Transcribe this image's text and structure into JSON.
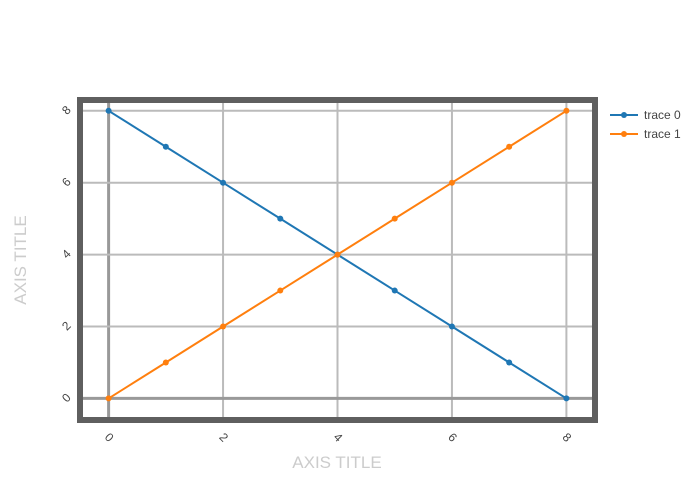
{
  "chart_data": {
    "type": "line",
    "xlabel": "AXIS TITLE",
    "ylabel": "AXIS TITLE",
    "xlim": [
      -0.5,
      8.5
    ],
    "ylim": [
      -0.6,
      8.3
    ],
    "xticks": [
      0,
      2,
      4,
      6,
      8
    ],
    "yticks": [
      0,
      2,
      4,
      6,
      8
    ],
    "grid": true,
    "legend_position": "top-right",
    "series": [
      {
        "name": "trace 0",
        "color": "#1f77b4",
        "x": [
          0,
          1,
          2,
          3,
          4,
          5,
          6,
          7,
          8
        ],
        "y": [
          8,
          7,
          6,
          5,
          4,
          3,
          2,
          1,
          0
        ]
      },
      {
        "name": "trace 1",
        "color": "#ff7f0e",
        "x": [
          0,
          1,
          2,
          3,
          4,
          5,
          6,
          7,
          8
        ],
        "y": [
          0,
          1,
          2,
          3,
          4,
          5,
          6,
          7,
          8
        ]
      }
    ]
  }
}
